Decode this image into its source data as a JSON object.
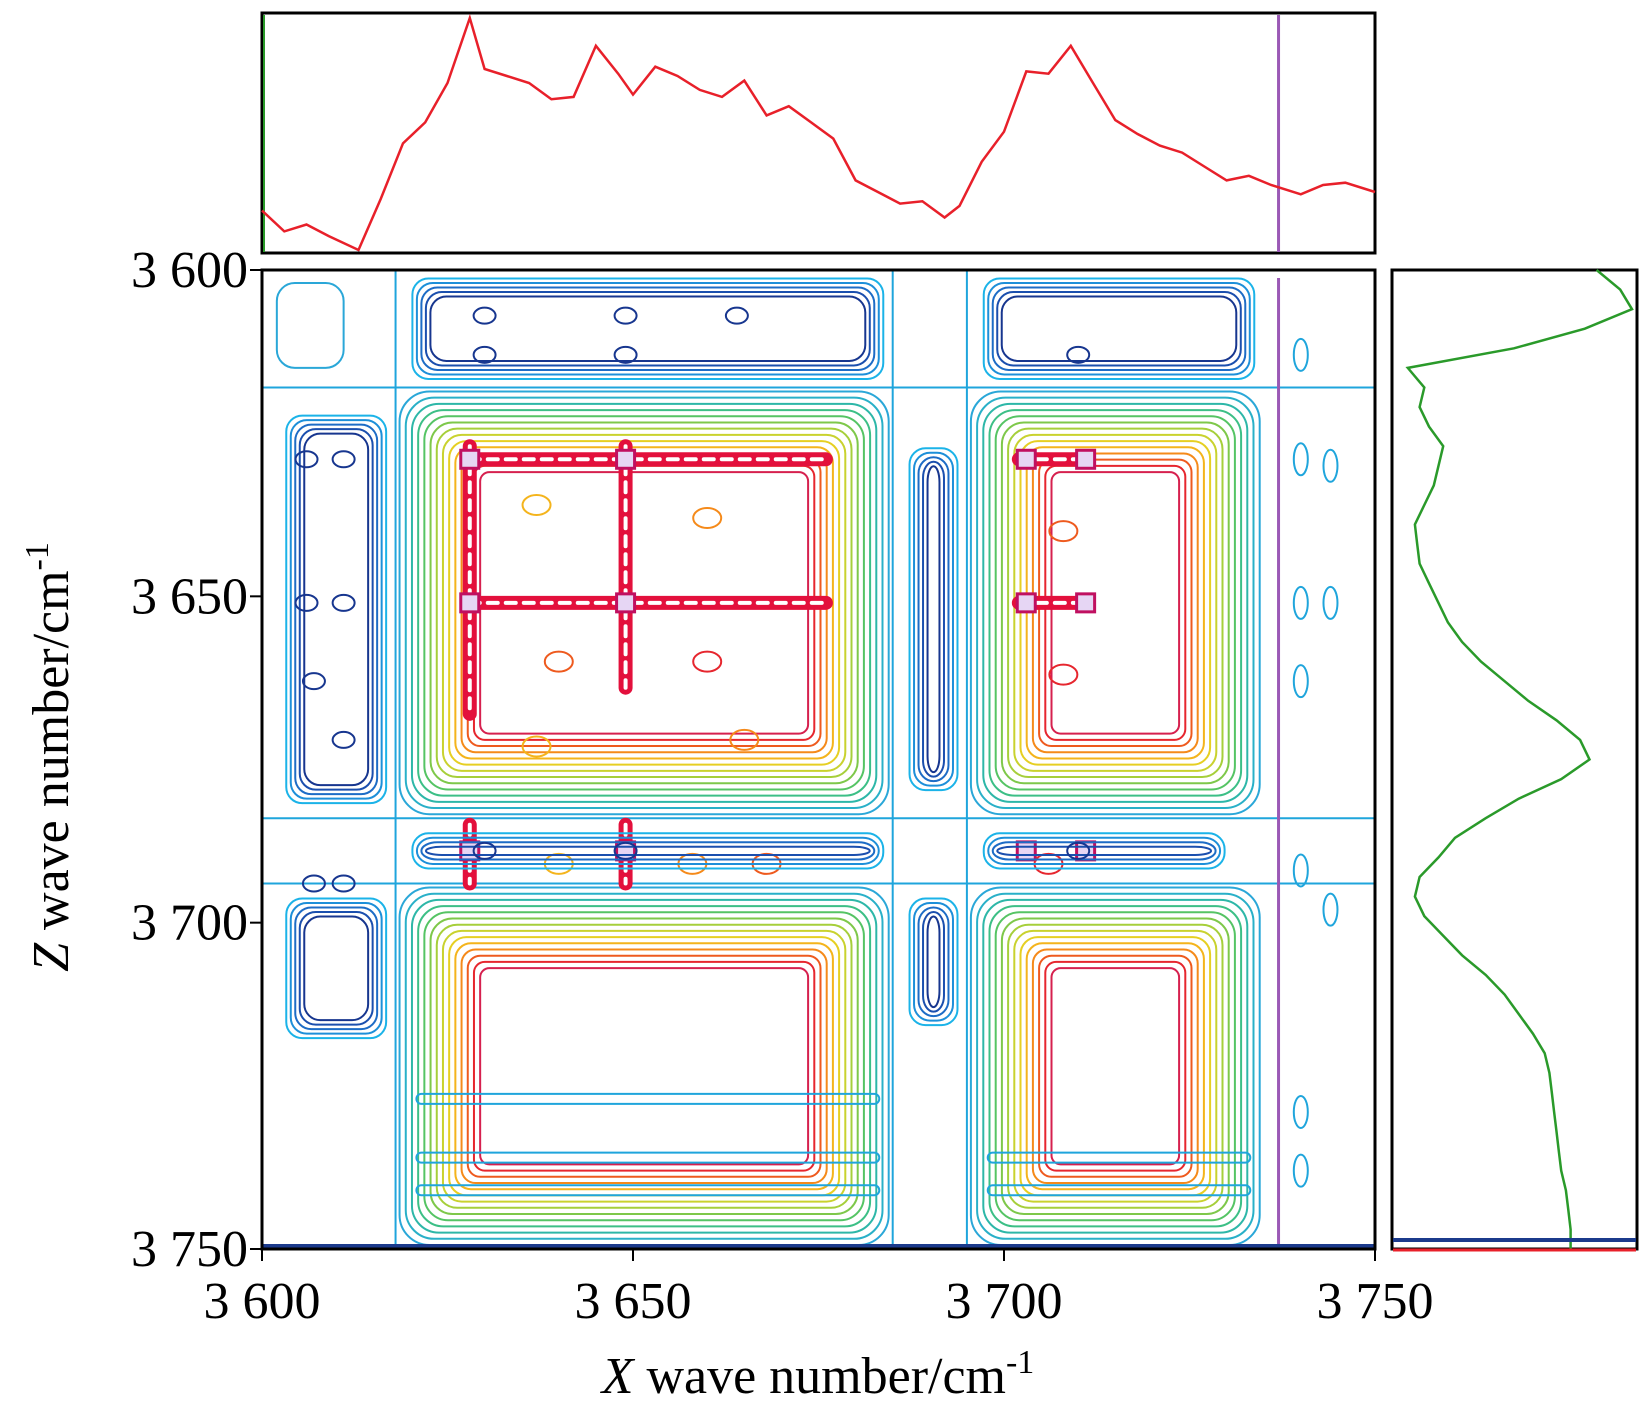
{
  "chart_data": {
    "type": "contour",
    "subtype": "2D correlation contour map with 1D projected spectra",
    "x_axis": {
      "range": [
        3600,
        3750
      ],
      "ticks": [
        3600,
        3650,
        3700,
        3750
      ],
      "tick_labels": [
        "3 600",
        "3 650",
        "3 700",
        "3 750"
      ],
      "label_var": "X",
      "label_rest": " wave number/cm",
      "label_sup": "-1"
    },
    "y_axis": {
      "range": [
        3600,
        3750
      ],
      "inverted": true,
      "ticks": [
        3600,
        3650,
        3700,
        3750
      ],
      "tick_labels": [
        "3 600",
        "3 650",
        "3 700",
        "3 750"
      ],
      "label_var": "Z",
      "label_rest": " wave number/cm",
      "label_sup": "-1"
    },
    "cursor_x": 3737,
    "peak_positions": {
      "x_bands": [
        3628,
        3649,
        3658,
        3670,
        3703,
        3711
      ],
      "z_bands": [
        3629,
        3651,
        3661,
        3689,
        3684
      ],
      "strong_peaks": [
        {
          "x": 3628,
          "z": 3629
        },
        {
          "x": 3649,
          "z": 3629
        },
        {
          "x": 3628,
          "z": 3651
        },
        {
          "x": 3649,
          "z": 3651
        },
        {
          "x": 3628,
          "z": 3689
        },
        {
          "x": 3649,
          "z": 3689
        },
        {
          "x": 3703,
          "z": 3629
        },
        {
          "x": 3711,
          "z": 3629
        },
        {
          "x": 3703,
          "z": 3651
        },
        {
          "x": 3711,
          "z": 3651
        },
        {
          "x": 3703,
          "z": 3689
        },
        {
          "x": 3711,
          "z": 3689
        }
      ],
      "blocks": [
        {
          "x": [
            3618,
            3685
          ],
          "z": [
            3618,
            3684
          ]
        },
        {
          "x": [
            3695,
            3735
          ],
          "z": [
            3618,
            3684
          ]
        },
        {
          "x": [
            3618,
            3685
          ],
          "z": [
            3694,
            3750
          ]
        },
        {
          "x": [
            3695,
            3735
          ],
          "z": [
            3694,
            3750
          ]
        }
      ]
    },
    "top_spectrum": {
      "color": "#e8202a",
      "x": [
        3600,
        3603,
        3606,
        3609,
        3613,
        3616,
        3619,
        3622,
        3625,
        3628,
        3630,
        3633,
        3636,
        3639,
        3642,
        3645,
        3648,
        3650,
        3653,
        3656,
        3659,
        3662,
        3665,
        3668,
        3671,
        3674,
        3677,
        3680,
        3683,
        3686,
        3689,
        3692,
        3694,
        3697,
        3700,
        3703,
        3706,
        3709,
        3712,
        3715,
        3718,
        3721,
        3724,
        3727,
        3730,
        3733,
        3736,
        3740,
        3743,
        3746,
        3750
      ],
      "y": [
        0.17,
        0.08,
        0.11,
        0.06,
        0.0,
        0.22,
        0.46,
        0.55,
        0.72,
        1.0,
        0.78,
        0.75,
        0.72,
        0.65,
        0.66,
        0.88,
        0.76,
        0.67,
        0.79,
        0.75,
        0.69,
        0.66,
        0.73,
        0.58,
        0.62,
        0.55,
        0.48,
        0.3,
        0.25,
        0.2,
        0.21,
        0.14,
        0.19,
        0.38,
        0.51,
        0.77,
        0.76,
        0.88,
        0.72,
        0.56,
        0.5,
        0.45,
        0.42,
        0.36,
        0.3,
        0.32,
        0.28,
        0.24,
        0.28,
        0.29,
        0.25
      ]
    },
    "right_spectrum": {
      "color": "#2a9a2a",
      "z": [
        3600,
        3603,
        3606,
        3609,
        3612,
        3615,
        3618,
        3621,
        3624,
        3627,
        3630,
        3633,
        3636,
        3639,
        3642,
        3645,
        3648,
        3651,
        3654,
        3657,
        3660,
        3663,
        3666,
        3669,
        3672,
        3675,
        3678,
        3681,
        3684,
        3687,
        3690,
        3693,
        3696,
        3699,
        3702,
        3705,
        3708,
        3711,
        3714,
        3717,
        3720,
        3723,
        3726,
        3729,
        3732,
        3735,
        3738,
        3741,
        3744,
        3747,
        3750
      ],
      "y": [
        0.85,
        0.95,
        1.0,
        0.8,
        0.5,
        0.05,
        0.12,
        0.1,
        0.14,
        0.2,
        0.18,
        0.16,
        0.12,
        0.08,
        0.09,
        0.1,
        0.14,
        0.18,
        0.22,
        0.28,
        0.36,
        0.46,
        0.56,
        0.68,
        0.78,
        0.82,
        0.7,
        0.52,
        0.38,
        0.25,
        0.18,
        0.1,
        0.08,
        0.12,
        0.2,
        0.28,
        0.38,
        0.46,
        0.52,
        0.58,
        0.63,
        0.65,
        0.66,
        0.67,
        0.68,
        0.69,
        0.7,
        0.72,
        0.73,
        0.74,
        0.74
      ]
    }
  }
}
